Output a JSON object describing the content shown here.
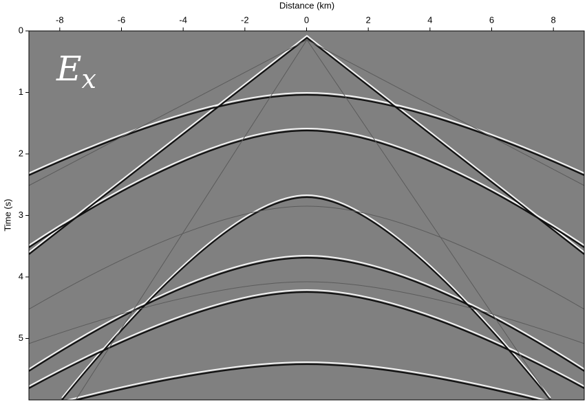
{
  "chart_data": {
    "type": "image",
    "x_label": "Distance (km)",
    "y_label": "Time (s)",
    "annotation": "E",
    "annotation_subscript": "x",
    "xlim": [
      -9,
      9
    ],
    "xticks": [
      -8,
      -6,
      -4,
      -2,
      0,
      2,
      4,
      6,
      8
    ],
    "ylim": [
      0,
      6
    ],
    "yticks": [
      0,
      1,
      2,
      3,
      4,
      5
    ],
    "y_inverted": true,
    "x_axis_position": "top",
    "background": "#808080"
  }
}
